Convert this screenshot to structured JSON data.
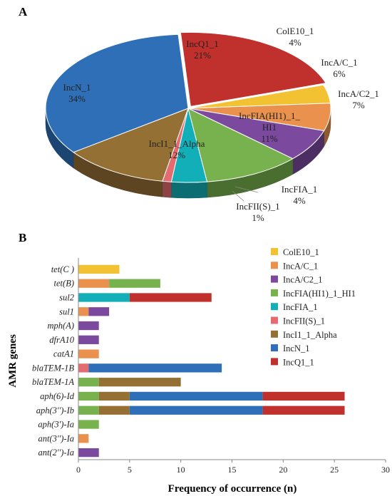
{
  "chart_data": [
    {
      "type": "pie",
      "panel_label": "A",
      "slices": [
        {
          "label": "IncQ1_1",
          "value": 21,
          "pct_label": "21%",
          "color": "#C0302C"
        },
        {
          "label": "ColE10_1",
          "value": 4,
          "pct_label": "4%",
          "color": "#F2C232"
        },
        {
          "label": "IncA/C_1",
          "value": 6,
          "pct_label": "6%",
          "color": "#E9914D"
        },
        {
          "label": "IncA/C2_1",
          "value": 7,
          "pct_label": "7%",
          "color": "#7B4A9E"
        },
        {
          "label": "IncFIA(HI1)_1_HI1",
          "value": 11,
          "pct_label": "11%",
          "color": "#78B24E"
        },
        {
          "label": "IncFIA_1",
          "value": 4,
          "pct_label": "4%",
          "color": "#13AFB8"
        },
        {
          "label": "IncFII(S)_1",
          "value": 1,
          "pct_label": "1%",
          "color": "#E46B6F"
        },
        {
          "label": "IncI1_1_Alpha",
          "value": 12,
          "pct_label": "12%",
          "color": "#957034"
        },
        {
          "label": "IncN_1",
          "value": 34,
          "pct_label": "34%",
          "color": "#2F6FB7"
        }
      ]
    },
    {
      "type": "bar",
      "orientation": "horizontal",
      "stacked": true,
      "panel_label": "B",
      "xlabel": "Frequency of occurrence (n)",
      "ylabel": "AMR genes",
      "xlim": [
        0,
        30
      ],
      "xticks": [
        0,
        5,
        10,
        15,
        20,
        25,
        30
      ],
      "categories": [
        "tet(C )",
        "tet(B)",
        "sul2",
        "sul1",
        "mph(A)",
        "dfrA10",
        "catA1",
        "blaTEM-1B",
        "blaTEM-1A",
        "aph(6)-Id",
        "aph(3'')-Ib",
        "aph(3')-Ia",
        "ant(3'')-Ia",
        "ant(2'')-Ia"
      ],
      "series": [
        {
          "name": "ColE10_1",
          "color": "#F2C232",
          "values": [
            4,
            0,
            0,
            0,
            0,
            0,
            0,
            0,
            0,
            0,
            0,
            0,
            0,
            0
          ]
        },
        {
          "name": "IncA/C_1",
          "color": "#E9914D",
          "values": [
            0,
            3,
            0,
            1,
            0,
            0,
            2,
            0,
            0,
            0,
            0,
            0,
            1,
            0
          ]
        },
        {
          "name": "IncA/C2_1",
          "color": "#7B4A9E",
          "values": [
            0,
            0,
            0,
            2,
            2,
            2,
            0,
            0,
            0,
            0,
            0,
            0,
            0,
            2
          ]
        },
        {
          "name": "IncFIA(HI1)_1_HI1",
          "color": "#78B24E",
          "values": [
            0,
            5,
            0,
            0,
            0,
            0,
            0,
            0,
            2,
            2,
            2,
            2,
            0,
            0
          ]
        },
        {
          "name": "IncFIA_1",
          "color": "#13AFB8",
          "values": [
            0,
            0,
            5,
            0,
            0,
            0,
            0,
            0,
            0,
            0,
            0,
            0,
            0,
            0
          ]
        },
        {
          "name": "IncFII(S)_1",
          "color": "#E46B6F",
          "values": [
            0,
            0,
            0,
            0,
            0,
            0,
            0,
            1,
            0,
            0,
            0,
            0,
            0,
            0
          ]
        },
        {
          "name": "IncI1_1_Alpha",
          "color": "#957034",
          "values": [
            0,
            0,
            0,
            0,
            0,
            0,
            0,
            0,
            8,
            3,
            3,
            0,
            0,
            0
          ]
        },
        {
          "name": "IncN_1",
          "color": "#2F6FB7",
          "values": [
            0,
            0,
            0,
            0,
            0,
            0,
            0,
            13,
            0,
            13,
            13,
            0,
            0,
            0
          ]
        },
        {
          "name": "IncQ1_1",
          "color": "#C0302C",
          "values": [
            0,
            0,
            8,
            0,
            0,
            0,
            0,
            0,
            0,
            8,
            8,
            0,
            0,
            0
          ]
        }
      ],
      "grid": false,
      "legend": "right"
    }
  ]
}
